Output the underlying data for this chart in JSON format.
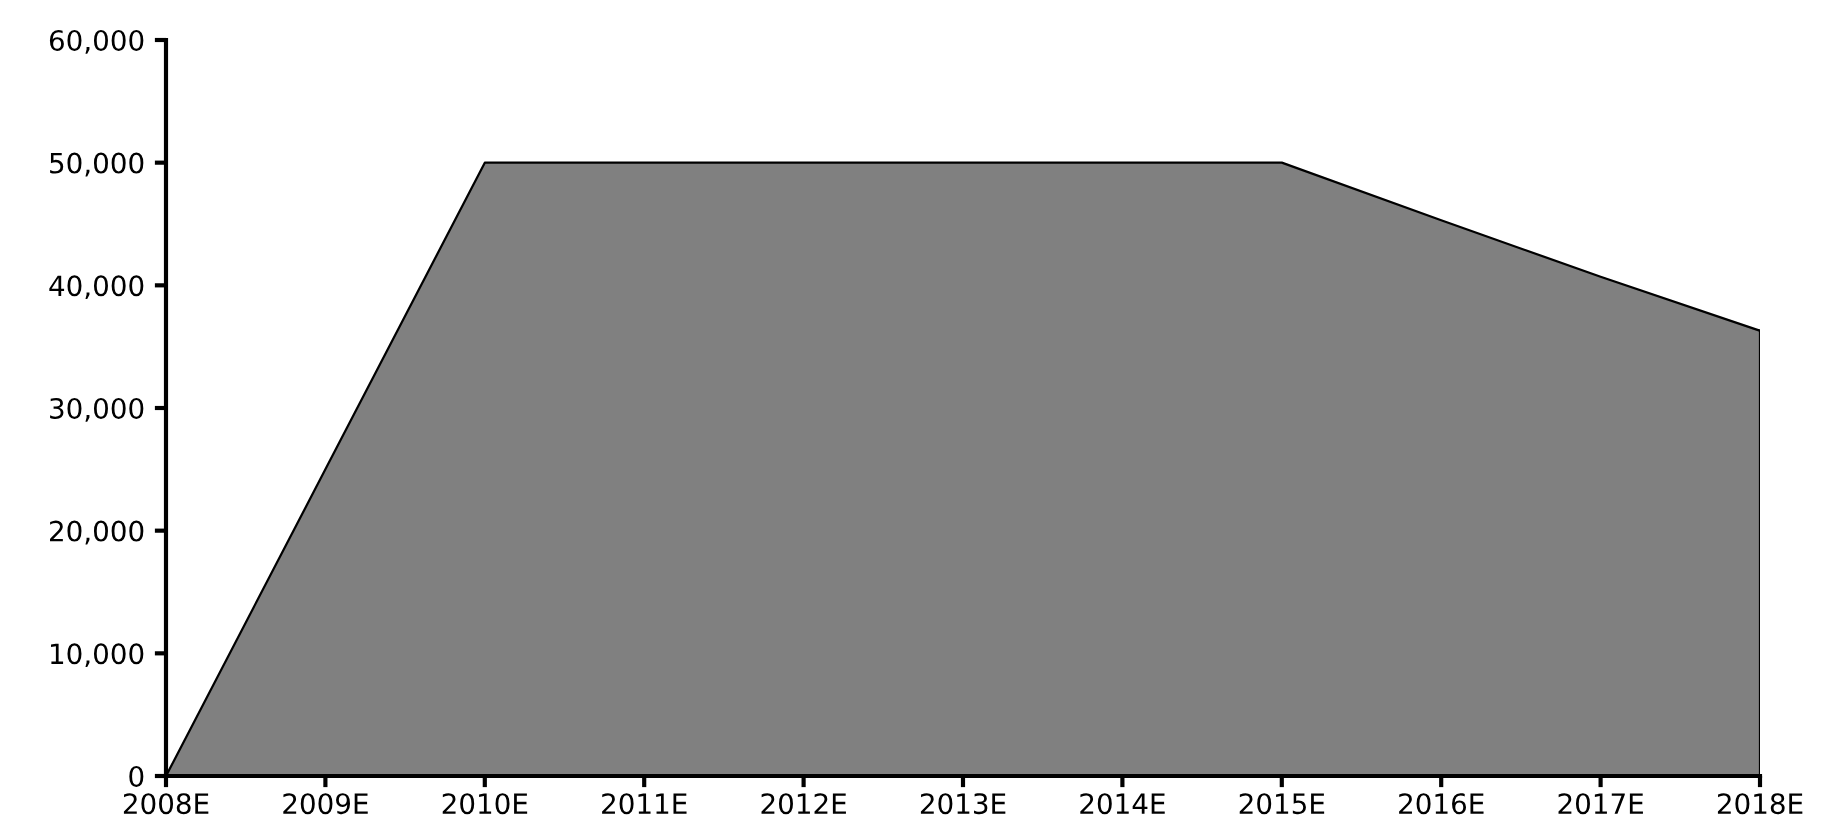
{
  "chart_data": {
    "type": "area",
    "categories": [
      "2008E",
      "2009E",
      "2010E",
      "2011E",
      "2012E",
      "2013E",
      "2014E",
      "2015E",
      "2016E",
      "2017E",
      "2018E"
    ],
    "series": [
      {
        "color": "#808080",
        "values": [
          0,
          25000,
          50000,
          50000,
          50000,
          50000,
          50000,
          50000,
          45300,
          40700,
          36300
        ]
      }
    ],
    "ylim": [
      0,
      60000
    ],
    "yticks": [
      {
        "value": 0,
        "label": "0"
      },
      {
        "value": 10000,
        "label": "10,000"
      },
      {
        "value": 20000,
        "label": "20,000"
      },
      {
        "value": 30000,
        "label": "30,000"
      },
      {
        "value": 40000,
        "label": "40,000"
      },
      {
        "value": 50000,
        "label": "50,000"
      },
      {
        "value": 60000,
        "label": "60,000"
      }
    ],
    "grid": false
  }
}
